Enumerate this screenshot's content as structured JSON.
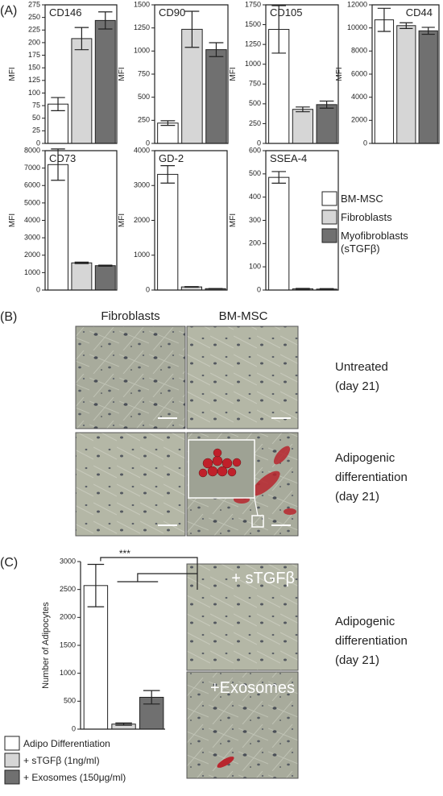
{
  "panels": {
    "a": "(A)",
    "b": "(B)",
    "c": "(C)"
  },
  "chart_data": [
    {
      "type": "bar",
      "title": "CD146",
      "ylabel": "MFI",
      "values": [
        78,
        208,
        244
      ],
      "errors": [
        13,
        22,
        17
      ],
      "colors": [
        "#ffffff",
        "#d6d6d6",
        "#707070"
      ],
      "ylim": [
        0,
        275
      ],
      "yticks": [
        0,
        25,
        50,
        75,
        100,
        125,
        150,
        175,
        200,
        225,
        250,
        275
      ]
    },
    {
      "type": "bar",
      "title": "CD90",
      "ylabel": "MFI",
      "values": [
        220,
        1235,
        1015
      ],
      "errors": [
        25,
        195,
        75
      ],
      "colors": [
        "#ffffff",
        "#d6d6d6",
        "#707070"
      ],
      "ylim": [
        0,
        1500
      ],
      "yticks": [
        0,
        250,
        500,
        750,
        1000,
        1250,
        1500
      ]
    },
    {
      "type": "bar",
      "title": "CD105",
      "ylabel": "MFI",
      "values": [
        1440,
        430,
        490
      ],
      "errors": [
        300,
        30,
        45
      ],
      "colors": [
        "#ffffff",
        "#d6d6d6",
        "#707070"
      ],
      "ylim": [
        0,
        1750
      ],
      "yticks": [
        0,
        250,
        500,
        750,
        1000,
        1250,
        1500,
        1750
      ]
    },
    {
      "type": "bar",
      "title": "CD44",
      "ylabel": "MFI",
      "values": [
        10700,
        10200,
        9750
      ],
      "errors": [
        1000,
        250,
        300
      ],
      "colors": [
        "#ffffff",
        "#d6d6d6",
        "#707070"
      ],
      "ylim": [
        0,
        12000
      ],
      "yticks": [
        0,
        2000,
        4000,
        6000,
        8000,
        10000,
        12000
      ]
    },
    {
      "type": "bar",
      "title": "CD73",
      "ylabel": "MFI",
      "values": [
        7200,
        1560,
        1400
      ],
      "errors": [
        900,
        40,
        30
      ],
      "colors": [
        "#ffffff",
        "#d6d6d6",
        "#707070"
      ],
      "ylim": [
        0,
        8000
      ],
      "yticks": [
        0,
        1000,
        2000,
        3000,
        4000,
        5000,
        6000,
        7000,
        8000
      ]
    },
    {
      "type": "bar",
      "title": "GD-2",
      "ylabel": "MFI",
      "values": [
        3320,
        90,
        40
      ],
      "errors": [
        250,
        10,
        5
      ],
      "colors": [
        "#ffffff",
        "#d6d6d6",
        "#707070"
      ],
      "ylim": [
        0,
        4000
      ],
      "yticks": [
        0,
        1000,
        2000,
        3000,
        4000
      ]
    },
    {
      "type": "bar",
      "title": "SSEA-4",
      "ylabel": "MFI",
      "values": [
        485,
        5,
        4
      ],
      "errors": [
        25,
        2,
        2
      ],
      "colors": [
        "#ffffff",
        "#d6d6d6",
        "#707070"
      ],
      "ylim": [
        0,
        600
      ],
      "yticks": [
        0,
        100,
        200,
        300,
        400,
        500,
        600
      ]
    },
    {
      "type": "bar",
      "ylabel": "Number of Adipocytes",
      "values": [
        2570,
        90,
        570
      ],
      "errors": [
        380,
        20,
        120
      ],
      "colors": [
        "#ffffff",
        "#d6d6d6",
        "#707070"
      ],
      "ylim": [
        0,
        3000
      ],
      "yticks": [
        0,
        500,
        1000,
        1500,
        2000,
        2500,
        3000
      ],
      "significance": "***"
    }
  ],
  "legends": [
    {
      "names": [
        [
          "BM-MSC"
        ],
        [
          "Fibroblasts"
        ],
        [
          "Myofibroblasts",
          "(sTGFβ)"
        ]
      ]
    },
    {
      "names": [
        [
          "Adipo Differentiation"
        ],
        [
          "+ sTGFβ (1ng/ml)"
        ],
        [
          "+ Exosomes (150μg/ml)"
        ]
      ]
    }
  ],
  "panel_b": {
    "columns": [
      "Fibroblasts",
      "BM-MSC"
    ],
    "rows": [
      [
        "Untreated",
        "(day 21)"
      ],
      [
        "Adipogenic",
        "differentiation",
        "(day 21)"
      ]
    ]
  },
  "panel_c": {
    "image_labels": [
      "+ sTGFβ",
      "+Exosomes"
    ],
    "side": [
      "Adipogenic",
      "differentiation",
      "(day 21)"
    ]
  }
}
